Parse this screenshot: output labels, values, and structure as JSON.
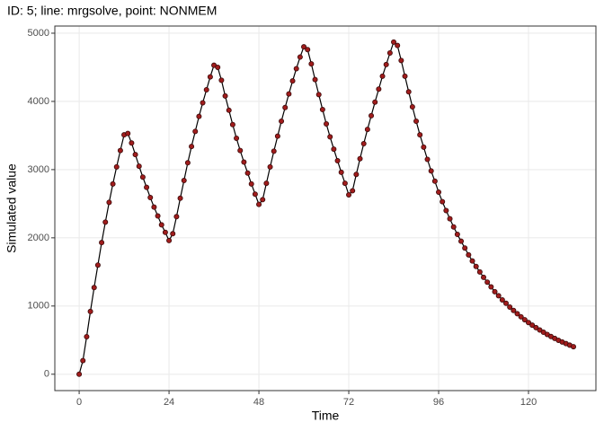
{
  "chart_data": {
    "type": "line_points",
    "title": "ID: 5; line: mrgsolve, point: NONMEM",
    "x_label": "Time",
    "y_label": "Simulated value",
    "xlim": [
      -6.5,
      138
    ],
    "ylim": [
      -240,
      5105
    ],
    "xticks": [
      0,
      24,
      48,
      72,
      96,
      120
    ],
    "yticks": [
      0,
      1000,
      2000,
      3000,
      4000,
      5000
    ],
    "grid": true,
    "line_color": "#000000",
    "point_color": "#a01c1c",
    "x": [
      0,
      1,
      2,
      3,
      4,
      5,
      6,
      7,
      8,
      9,
      10,
      11,
      12,
      13,
      14,
      15,
      16,
      17,
      18,
      19,
      20,
      21,
      22,
      23,
      24,
      25,
      26,
      27,
      28,
      29,
      30,
      31,
      32,
      33,
      34,
      35,
      36,
      37,
      38,
      39,
      40,
      41,
      42,
      43,
      44,
      45,
      46,
      47,
      48,
      49,
      50,
      51,
      52,
      53,
      54,
      55,
      56,
      57,
      58,
      59,
      60,
      61,
      62,
      63,
      64,
      65,
      66,
      67,
      68,
      69,
      70,
      71,
      72,
      73,
      74,
      75,
      76,
      77,
      78,
      79,
      80,
      81,
      82,
      83,
      84,
      85,
      86,
      87,
      88,
      89,
      90,
      91,
      92,
      93,
      94,
      95,
      96,
      97,
      98,
      99,
      100,
      101,
      102,
      103,
      104,
      105,
      106,
      107,
      108,
      109,
      110,
      111,
      112,
      113,
      114,
      115,
      116,
      117,
      118,
      119,
      120,
      121,
      122,
      123,
      124,
      125,
      126,
      127,
      128,
      129,
      130,
      131,
      132
    ],
    "values": [
      0,
      200,
      550,
      920,
      1270,
      1600,
      1930,
      2230,
      2520,
      2790,
      3040,
      3280,
      3510,
      3530,
      3390,
      3220,
      3050,
      2890,
      2740,
      2590,
      2450,
      2320,
      2190,
      2080,
      1960,
      2060,
      2310,
      2580,
      2840,
      3100,
      3340,
      3560,
      3780,
      3980,
      4170,
      4360,
      4530,
      4500,
      4310,
      4080,
      3870,
      3660,
      3460,
      3280,
      3110,
      2950,
      2790,
      2640,
      2490,
      2560,
      2800,
      3040,
      3270,
      3490,
      3710,
      3910,
      4110,
      4300,
      4480,
      4650,
      4800,
      4760,
      4550,
      4320,
      4100,
      3880,
      3670,
      3480,
      3300,
      3130,
      2960,
      2800,
      2630,
      2690,
      2930,
      3160,
      3380,
      3590,
      3790,
      3990,
      4180,
      4370,
      4540,
      4710,
      4870,
      4820,
      4600,
      4370,
      4140,
      3920,
      3710,
      3510,
      3330,
      3150,
      2980,
      2830,
      2670,
      2530,
      2400,
      2280,
      2160,
      2050,
      1950,
      1850,
      1750,
      1660,
      1580,
      1500,
      1420,
      1350,
      1280,
      1210,
      1150,
      1090,
      1040,
      985,
      935,
      887,
      842,
      799,
      758,
      719,
      683,
      648,
      615,
      583,
      553,
      525,
      498,
      473,
      449,
      426,
      404
    ]
  }
}
